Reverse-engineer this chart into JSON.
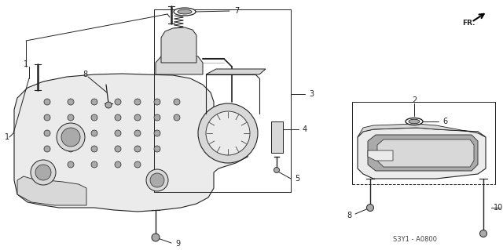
{
  "bg_color": "#ffffff",
  "line_color": "#222222",
  "gray_fill": "#d8d8d8",
  "dark_gray": "#aaaaaa",
  "light_gray": "#ebebeb",
  "diagram_code": "S3Y1 - A0800",
  "figsize": [
    6.4,
    3.19
  ],
  "dpi": 100
}
